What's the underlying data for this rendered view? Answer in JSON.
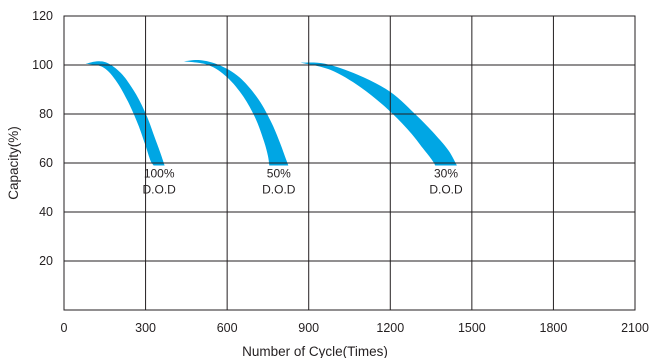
{
  "chart_data": {
    "type": "area",
    "xlabel": "Number of Cycle(Times)",
    "ylabel": "Capacity(%)",
    "xlim": [
      0,
      2100
    ],
    "ylim": [
      0,
      120
    ],
    "x_ticks": [
      "0",
      "300",
      "600",
      "900",
      "1200",
      "1500",
      "1800",
      "2100"
    ],
    "y_ticks": [
      "20",
      "40",
      "60",
      "80",
      "100",
      "120"
    ],
    "grid": true,
    "fill_color": "#00a6e4",
    "series": [
      {
        "name": "100% D.O.D",
        "label_lines": [
          "100%",
          "D.O.D"
        ],
        "upper": [
          [
            80,
            100.5
          ],
          [
            125,
            101.5
          ],
          [
            165,
            100.5
          ],
          [
            215,
            96
          ],
          [
            265,
            88
          ],
          [
            305,
            79
          ],
          [
            335,
            70
          ],
          [
            355,
            64
          ],
          [
            370,
            59
          ]
        ],
        "lower": [
          [
            80,
            100.5
          ],
          [
            145,
            99
          ],
          [
            195,
            93
          ],
          [
            240,
            84
          ],
          [
            275,
            75
          ],
          [
            300,
            67
          ],
          [
            318,
            61
          ],
          [
            330,
            59
          ]
        ]
      },
      {
        "name": "50% D.O.D",
        "label_lines": [
          "50%",
          "D.O.D"
        ],
        "upper": [
          [
            440,
            101.5
          ],
          [
            500,
            102
          ],
          [
            570,
            100
          ],
          [
            645,
            95
          ],
          [
            715,
            86
          ],
          [
            765,
            76
          ],
          [
            795,
            68
          ],
          [
            815,
            62
          ],
          [
            825,
            59
          ]
        ],
        "lower": [
          [
            440,
            101.5
          ],
          [
            530,
            100
          ],
          [
            600,
            95
          ],
          [
            660,
            87
          ],
          [
            705,
            78
          ],
          [
            735,
            69
          ],
          [
            750,
            63
          ],
          [
            755,
            59
          ]
        ]
      },
      {
        "name": "30% D.O.D",
        "label_lines": [
          "30%",
          "D.O.D"
        ],
        "upper": [
          [
            870,
            101
          ],
          [
            960,
            100.5
          ],
          [
            1080,
            96
          ],
          [
            1200,
            89
          ],
          [
            1300,
            79
          ],
          [
            1370,
            71
          ],
          [
            1415,
            65
          ],
          [
            1445,
            59
          ]
        ],
        "lower": [
          [
            870,
            101
          ],
          [
            980,
            98
          ],
          [
            1090,
            91
          ],
          [
            1190,
            82
          ],
          [
            1270,
            73
          ],
          [
            1320,
            66
          ],
          [
            1355,
            61
          ],
          [
            1365,
            59
          ]
        ]
      }
    ]
  }
}
